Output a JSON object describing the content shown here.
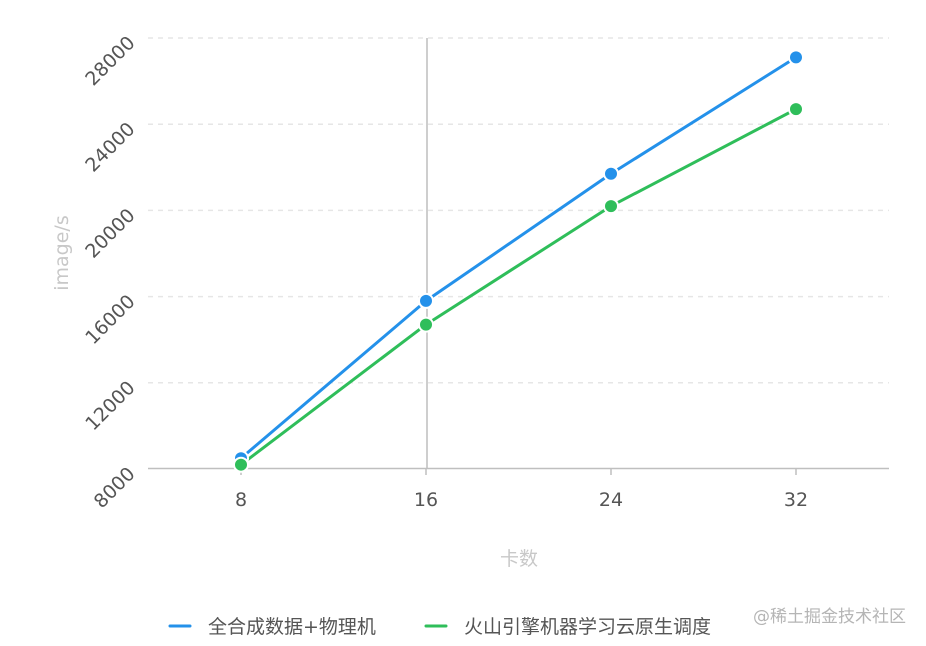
{
  "chart_data": {
    "type": "line",
    "categories": [
      "8",
      "16",
      "24",
      "32"
    ],
    "series": [
      {
        "name": "全合成数据+物理机",
        "color": "#2491ea",
        "values": [
          8500,
          15800,
          21700,
          27100
        ]
      },
      {
        "name": "火山引擎机器学习云原生调度",
        "color": "#2fbe5a",
        "values": [
          8200,
          14700,
          20200,
          24700
        ]
      }
    ],
    "y_ticks": [
      "8000",
      "12000",
      "16000",
      "20000",
      "24000",
      "28000"
    ],
    "ylim": [
      8000,
      28000
    ],
    "xlabel": "卡数",
    "ylabel": "image/s",
    "grid": true,
    "legend": "bottom"
  },
  "watermark": "@稀土掘金技术社区"
}
